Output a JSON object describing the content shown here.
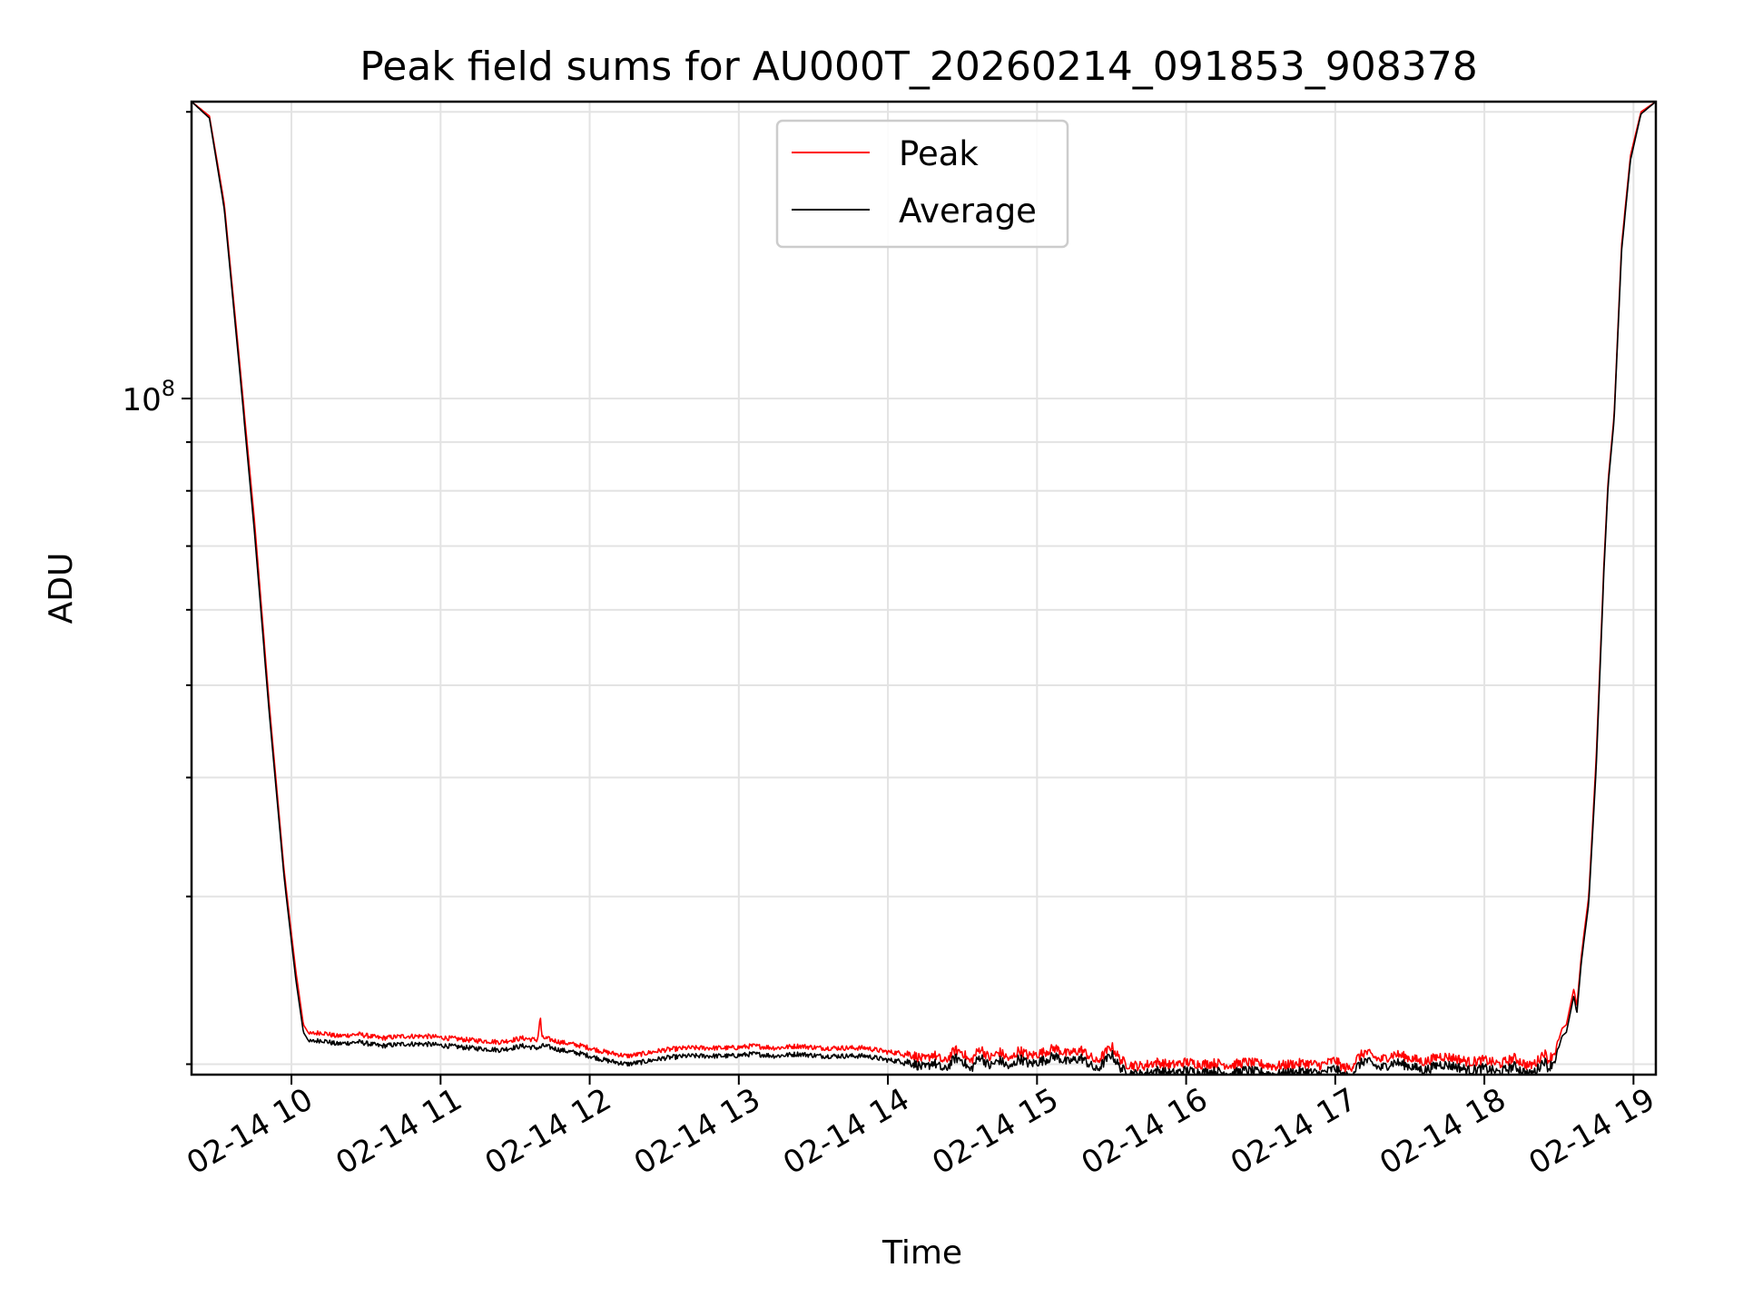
{
  "chart_data": {
    "type": "line",
    "title": "Peak field sums for AU000T_20260214_091853_908378",
    "xlabel": "Time",
    "ylabel": "ADU",
    "yscale": "log",
    "xlim": [
      9.33,
      19.15
    ],
    "ylim": [
      19500000,
      205000000
    ],
    "grid": true,
    "legend_position": "upper-center",
    "x_ticks": [
      {
        "value": 10,
        "label": "02-14 10"
      },
      {
        "value": 11,
        "label": "02-14 11"
      },
      {
        "value": 12,
        "label": "02-14 12"
      },
      {
        "value": 13,
        "label": "02-14 13"
      },
      {
        "value": 14,
        "label": "02-14 14"
      },
      {
        "value": 15,
        "label": "02-14 15"
      },
      {
        "value": 16,
        "label": "02-14 16"
      },
      {
        "value": 17,
        "label": "02-14 17"
      },
      {
        "value": 18,
        "label": "02-14 18"
      },
      {
        "value": 19,
        "label": "02-14 19"
      }
    ],
    "y_major_ticks": [
      {
        "value": 100000000,
        "base": "10",
        "exp": "8"
      }
    ],
    "y_minor_ticks": [
      20000000,
      30000000,
      40000000,
      50000000,
      60000000,
      70000000,
      80000000,
      90000000,
      200000000
    ],
    "series": [
      {
        "name": "Peak",
        "color": "#ff0000",
        "x": [
          9.33,
          9.45,
          9.55,
          9.65,
          9.75,
          9.85,
          9.95,
          10.03,
          10.08,
          10.12,
          10.2,
          10.3,
          10.45,
          10.6,
          10.75,
          10.9,
          11.05,
          11.2,
          11.4,
          11.55,
          11.65,
          11.67,
          11.68,
          11.7,
          11.8,
          11.95,
          12.1,
          12.25,
          12.35,
          12.5,
          12.65,
          12.8,
          12.95,
          13.1,
          13.25,
          13.4,
          13.55,
          13.7,
          13.85,
          14.0,
          14.15,
          14.25,
          14.3,
          14.38,
          14.45,
          14.5,
          14.55,
          14.62,
          14.68,
          14.75,
          14.82,
          14.88,
          14.95,
          15.05,
          15.12,
          15.2,
          15.3,
          15.4,
          15.5,
          15.55,
          15.6,
          15.7,
          15.8,
          15.9,
          16.0,
          16.1,
          16.2,
          16.3,
          16.4,
          16.5,
          16.6,
          16.7,
          16.8,
          16.9,
          17.0,
          17.05,
          17.1,
          17.15,
          17.2,
          17.3,
          17.4,
          17.5,
          17.6,
          17.7,
          17.8,
          17.9,
          18.0,
          18.1,
          18.2,
          18.3,
          18.35,
          18.4,
          18.43,
          18.48,
          18.52,
          18.55,
          18.6,
          18.62,
          18.65,
          18.7,
          18.75,
          18.8,
          18.83,
          18.87,
          18.92,
          18.98,
          19.05,
          19.15
        ],
        "values": [
          205000000,
          198000000,
          160000000,
          110000000,
          75000000,
          48000000,
          32000000,
          25000000,
          22000000,
          21500000,
          21600000,
          21400000,
          21500000,
          21300000,
          21400000,
          21400000,
          21300000,
          21200000,
          21100000,
          21300000,
          21200000,
          22400000,
          21300000,
          21300000,
          21100000,
          20900000,
          20600000,
          20400000,
          20500000,
          20700000,
          20800000,
          20800000,
          20800000,
          20900000,
          20800000,
          20900000,
          20800000,
          20800000,
          20800000,
          20600000,
          20500000,
          20200000,
          20500000,
          20100000,
          20700000,
          20600000,
          20100000,
          20800000,
          20300000,
          20600000,
          20200000,
          20700000,
          20400000,
          20600000,
          20800000,
          20500000,
          20700000,
          20100000,
          20900000,
          20300000,
          20000000,
          19900000,
          20100000,
          19950000,
          20100000,
          20000000,
          20050000,
          19950000,
          20100000,
          20000000,
          19900000,
          20000000,
          20050000,
          19950000,
          20200000,
          19850000,
          19800000,
          20300000,
          20600000,
          20200000,
          20500000,
          20300000,
          20100000,
          20400000,
          20300000,
          20100000,
          20200000,
          20000000,
          20300000,
          19900000,
          20100000,
          20600000,
          20200000,
          20700000,
          21800000,
          22000000,
          24000000,
          23000000,
          26000000,
          30000000,
          42000000,
          66000000,
          82000000,
          96000000,
          145000000,
          180000000,
          200000000,
          205000000
        ]
      },
      {
        "name": "Average",
        "color": "#000000",
        "x": [
          9.33,
          9.45,
          9.55,
          9.65,
          9.75,
          9.85,
          9.95,
          10.03,
          10.08,
          10.12,
          10.2,
          10.3,
          10.45,
          10.6,
          10.75,
          10.9,
          11.05,
          11.2,
          11.4,
          11.55,
          11.65,
          11.67,
          11.68,
          11.7,
          11.8,
          11.95,
          12.1,
          12.25,
          12.35,
          12.5,
          12.65,
          12.8,
          12.95,
          13.1,
          13.25,
          13.4,
          13.55,
          13.7,
          13.85,
          14.0,
          14.15,
          14.25,
          14.3,
          14.38,
          14.45,
          14.5,
          14.55,
          14.62,
          14.68,
          14.75,
          14.82,
          14.88,
          14.95,
          15.05,
          15.12,
          15.2,
          15.3,
          15.4,
          15.5,
          15.55,
          15.6,
          15.7,
          15.8,
          15.9,
          16.0,
          16.1,
          16.2,
          16.3,
          16.4,
          16.5,
          16.6,
          16.7,
          16.8,
          16.9,
          17.0,
          17.05,
          17.1,
          17.15,
          17.2,
          17.3,
          17.4,
          17.5,
          17.6,
          17.7,
          17.8,
          17.9,
          18.0,
          18.1,
          18.2,
          18.3,
          18.35,
          18.4,
          18.43,
          18.48,
          18.52,
          18.55,
          18.6,
          18.62,
          18.65,
          18.7,
          18.75,
          18.8,
          18.83,
          18.87,
          18.92,
          18.98,
          19.05,
          19.15
        ],
        "values": [
          205000000,
          197000000,
          158000000,
          108000000,
          73000000,
          47000000,
          31500000,
          24500000,
          21600000,
          21100000,
          21200000,
          21000000,
          21100000,
          20900000,
          21000000,
          21000000,
          20900000,
          20800000,
          20700000,
          20900000,
          20800000,
          20800000,
          20900000,
          20900000,
          20700000,
          20500000,
          20200000,
          20000000,
          20100000,
          20300000,
          20400000,
          20400000,
          20400000,
          20500000,
          20400000,
          20500000,
          20400000,
          20400000,
          20400000,
          20200000,
          20100000,
          19800000,
          20100000,
          19700000,
          20300000,
          20200000,
          19700000,
          20400000,
          19900000,
          20200000,
          19800000,
          20300000,
          20000000,
          20200000,
          20400000,
          20100000,
          20300000,
          19700000,
          20500000,
          19900000,
          19600000,
          19500000,
          19700000,
          19550000,
          19700000,
          19600000,
          19650000,
          19550000,
          19700000,
          19600000,
          19500000,
          19600000,
          19650000,
          19550000,
          19800000,
          19450000,
          19400000,
          19900000,
          20200000,
          19800000,
          20100000,
          19900000,
          19700000,
          20000000,
          19900000,
          19700000,
          19800000,
          19600000,
          19900000,
          19500000,
          19700000,
          20200000,
          19800000,
          20300000,
          21400000,
          21600000,
          23600000,
          22600000,
          25600000,
          29500000,
          41000000,
          65000000,
          81000000,
          95000000,
          143000000,
          178000000,
          199000000,
          205000000
        ]
      }
    ]
  }
}
